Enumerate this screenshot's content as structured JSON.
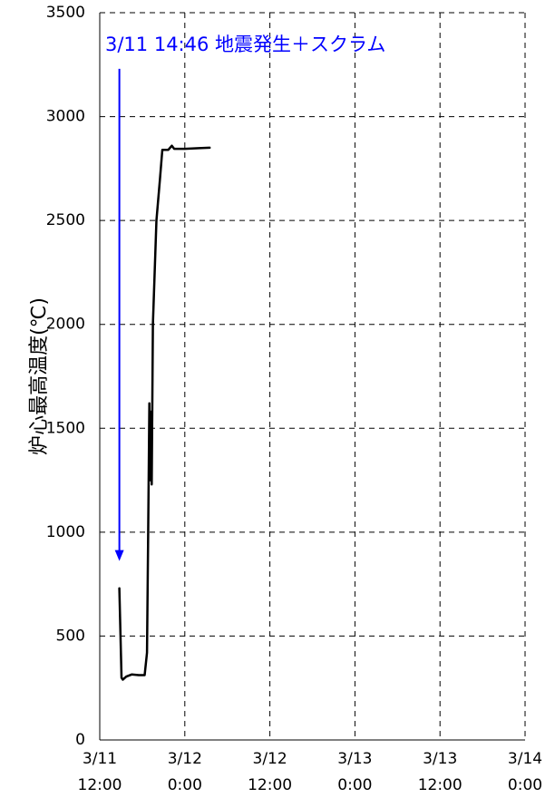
{
  "chart_data": {
    "type": "line",
    "title": "",
    "xlabel": "",
    "ylabel": "炉心最高温度(℃)",
    "ylim": [
      0,
      3500
    ],
    "yticks": [
      0,
      500,
      1000,
      1500,
      2000,
      2500,
      3000,
      3500
    ],
    "xlim": [
      "2011-03-11T12:00",
      "2011-03-14T00:00"
    ],
    "xticks": [
      {
        "t": "2011-03-11T12:00",
        "line1": "3/11",
        "line2": "12:00"
      },
      {
        "t": "2011-03-12T00:00",
        "line1": "3/12",
        "line2": "0:00"
      },
      {
        "t": "2011-03-12T12:00",
        "line1": "3/12",
        "line2": "12:00"
      },
      {
        "t": "2011-03-13T00:00",
        "line1": "3/13",
        "line2": "0:00"
      },
      {
        "t": "2011-03-13T12:00",
        "line1": "3/13",
        "line2": "12:00"
      },
      {
        "t": "2011-03-14T00:00",
        "line1": "3/14",
        "line2": "0:00"
      }
    ],
    "grid": true,
    "series": [
      {
        "color": "#000000",
        "points": [
          {
            "t": "2011-03-11T14:46",
            "y": 730
          },
          {
            "t": "2011-03-11T15:04",
            "y": 300
          },
          {
            "t": "2011-03-11T15:15",
            "y": 290
          },
          {
            "t": "2011-03-11T15:45",
            "y": 305
          },
          {
            "t": "2011-03-11T16:30",
            "y": 315
          },
          {
            "t": "2011-03-11T17:30",
            "y": 312
          },
          {
            "t": "2011-03-11T18:20",
            "y": 312
          },
          {
            "t": "2011-03-11T18:40",
            "y": 420
          },
          {
            "t": "2011-03-11T18:50",
            "y": 1000
          },
          {
            "t": "2011-03-11T19:00",
            "y": 1620
          },
          {
            "t": "2011-03-11T19:05",
            "y": 1250
          },
          {
            "t": "2011-03-11T19:12",
            "y": 1580
          },
          {
            "t": "2011-03-11T19:20",
            "y": 1230
          },
          {
            "t": "2011-03-11T19:30",
            "y": 2000
          },
          {
            "t": "2011-03-11T20:00",
            "y": 2500
          },
          {
            "t": "2011-03-11T20:30",
            "y": 2700
          },
          {
            "t": "2011-03-11T20:50",
            "y": 2840
          },
          {
            "t": "2011-03-11T21:40",
            "y": 2840
          },
          {
            "t": "2011-03-11T22:10",
            "y": 2860
          },
          {
            "t": "2011-03-11T22:30",
            "y": 2845
          },
          {
            "t": "2011-03-12T00:00",
            "y": 2845
          },
          {
            "t": "2011-03-12T02:00",
            "y": 2848
          },
          {
            "t": "2011-03-12T03:30",
            "y": 2850
          }
        ]
      }
    ],
    "annotation": {
      "text": "3/11 14:46 地震発生＋スクラム",
      "color": "#0000ff",
      "arrow_t": "2011-03-11T14:46",
      "arrow_y_from": 3230,
      "arrow_y_to": 870
    }
  }
}
